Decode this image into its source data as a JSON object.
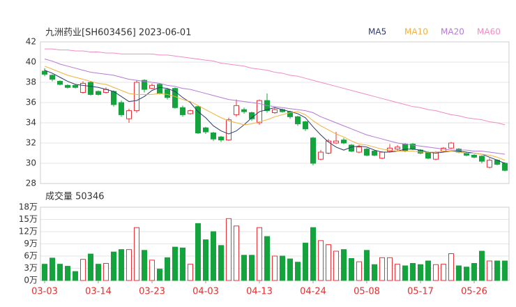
{
  "chart_data": [
    {
      "type": "candlestick",
      "title": "九洲药业[SH603456] 2023-06-01",
      "up_color": "#e8333a",
      "down_color": "#15a33d",
      "open": [
        39.1,
        38.7,
        38.1,
        37.7,
        37.7,
        37.0,
        38.0,
        37.1,
        37.0,
        37.1,
        36.0,
        34.4,
        35.2,
        38.2,
        37.4,
        37.8,
        37.3,
        37.4,
        35.5,
        34.9,
        35.6,
        33.5,
        33.0,
        32.6,
        32.3,
        34.8,
        35.3,
        35.0,
        34.0,
        36.2,
        35.0,
        35.3,
        35.1,
        34.6,
        34.1,
        32.5,
        30.4,
        31.0,
        32.0,
        32.3,
        31.8,
        31.1,
        31.4,
        31.2,
        30.5,
        31.2,
        31.4,
        31.9,
        31.9,
        31.3,
        31.1,
        30.4,
        31.2,
        31.5,
        31.4,
        31.0,
        30.8,
        30.7,
        29.6,
        30.3,
        30.0
      ],
      "high": [
        39.4,
        38.8,
        38.2,
        37.8,
        37.8,
        38.1,
        38.1,
        37.2,
        37.5,
        37.2,
        36.2,
        35.4,
        38.2,
        38.3,
        37.9,
        37.9,
        37.4,
        37.5,
        35.7,
        35.3,
        35.7,
        33.6,
        33.1,
        32.7,
        34.5,
        36.3,
        35.5,
        35.1,
        36.3,
        36.9,
        35.5,
        35.4,
        35.2,
        34.7,
        34.2,
        32.6,
        31.3,
        32.4,
        33.1,
        32.5,
        31.9,
        31.8,
        31.5,
        31.3,
        31.2,
        31.9,
        31.8,
        32.0,
        32.0,
        31.4,
        31.2,
        31.2,
        31.6,
        32.1,
        31.5,
        31.1,
        30.9,
        30.8,
        30.5,
        30.4,
        30.1
      ],
      "low": [
        38.6,
        38.1,
        37.7,
        37.4,
        37.4,
        36.9,
        36.7,
        36.7,
        36.9,
        35.6,
        34.6,
        34.0,
        35.0,
        37.0,
        37.3,
        36.8,
        36.3,
        35.4,
        34.6,
        34.8,
        32.9,
        32.9,
        32.2,
        32.1,
        32.2,
        34.6,
        34.9,
        34.2,
        33.8,
        35.0,
        34.9,
        35.0,
        34.4,
        33.7,
        33.2,
        29.8,
        30.3,
        30.9,
        31.9,
        31.9,
        31.1,
        31.0,
        30.7,
        30.7,
        30.4,
        31.1,
        31.2,
        31.1,
        31.3,
        30.9,
        30.4,
        30.3,
        31.1,
        31.4,
        31.0,
        30.7,
        30.5,
        30.0,
        29.5,
        29.8,
        29.2
      ],
      "close": [
        38.8,
        38.3,
        37.8,
        37.5,
        37.5,
        37.9,
        36.8,
        36.8,
        37.3,
        35.8,
        34.8,
        35.2,
        38.0,
        37.3,
        37.7,
        36.9,
        36.5,
        35.5,
        34.8,
        35.2,
        33.0,
        33.1,
        32.4,
        32.3,
        34.3,
        35.7,
        35.1,
        34.4,
        36.2,
        35.2,
        35.3,
        35.1,
        34.6,
        33.9,
        33.4,
        30.0,
        31.1,
        32.2,
        32.2,
        32.0,
        31.2,
        31.6,
        30.8,
        30.8,
        31.1,
        31.5,
        31.6,
        31.2,
        31.4,
        31.0,
        30.5,
        31.1,
        31.5,
        32.0,
        31.1,
        30.8,
        30.6,
        30.2,
        30.3,
        29.9,
        29.3
      ],
      "series": [
        {
          "name": "MA5",
          "color": "#2e3a6e",
          "values": [
            39.2,
            38.9,
            38.5,
            38.1,
            37.8,
            37.7,
            37.6,
            37.5,
            37.3,
            37.1,
            36.6,
            36.1,
            36.2,
            36.6,
            37.2,
            37.5,
            37.4,
            37.1,
            36.5,
            36.0,
            35.1,
            34.5,
            33.7,
            33.2,
            32.9,
            33.2,
            33.8,
            34.5,
            35.1,
            35.3,
            35.5,
            35.3,
            35.1,
            34.9,
            34.5,
            33.6,
            32.8,
            32.1,
            31.6,
            31.3,
            31.6,
            31.7,
            31.6,
            31.3,
            31.1,
            31.1,
            31.2,
            31.4,
            31.4,
            31.3,
            31.1,
            31.0,
            31.1,
            31.2,
            31.2,
            31.1,
            31.0,
            30.9,
            30.6,
            30.3,
            30.0
          ]
        },
        {
          "name": "MA10",
          "color": "#f2b13e",
          "values": [
            39.6,
            39.3,
            39.0,
            38.7,
            38.5,
            38.3,
            38.1,
            37.9,
            37.8,
            37.5,
            37.2,
            36.9,
            36.8,
            36.8,
            36.8,
            36.9,
            36.8,
            36.6,
            36.3,
            36.1,
            35.7,
            35.3,
            34.9,
            34.5,
            34.2,
            34.0,
            33.8,
            33.9,
            34.1,
            34.3,
            34.6,
            34.8,
            35.0,
            35.1,
            34.8,
            34.2,
            33.7,
            33.3,
            32.9,
            32.6,
            32.2,
            31.9,
            31.8,
            31.6,
            31.4,
            31.3,
            31.2,
            31.2,
            31.2,
            31.1,
            31.1,
            31.1,
            31.2,
            31.2,
            31.1,
            31.0,
            31.0,
            30.9,
            30.8,
            30.6,
            30.3
          ]
        },
        {
          "name": "MA20",
          "color": "#b478d8",
          "values": [
            40.3,
            40.1,
            39.8,
            39.6,
            39.4,
            39.2,
            39.0,
            38.9,
            38.8,
            38.7,
            38.5,
            38.3,
            38.2,
            38.1,
            38.0,
            37.9,
            37.7,
            37.6,
            37.4,
            37.3,
            37.1,
            36.9,
            36.7,
            36.5,
            36.3,
            36.2,
            36.1,
            36.0,
            35.9,
            35.7,
            35.6,
            35.5,
            35.4,
            35.3,
            35.2,
            35.0,
            34.6,
            34.3,
            34.0,
            33.7,
            33.4,
            33.1,
            32.8,
            32.6,
            32.4,
            32.2,
            32.0,
            31.9,
            31.8,
            31.7,
            31.6,
            31.5,
            31.4,
            31.3,
            31.3,
            31.3,
            31.2,
            31.2,
            31.1,
            31.0,
            30.9
          ]
        },
        {
          "name": "MA60",
          "color": "#f08cc4",
          "values": [
            41.3,
            41.3,
            41.2,
            41.2,
            41.1,
            41.1,
            41.0,
            41.0,
            40.9,
            40.9,
            40.8,
            40.8,
            40.8,
            40.8,
            40.8,
            40.7,
            40.7,
            40.6,
            40.5,
            40.4,
            40.3,
            40.2,
            40.1,
            39.9,
            39.8,
            39.7,
            39.6,
            39.4,
            39.3,
            39.2,
            39.0,
            38.9,
            38.7,
            38.6,
            38.4,
            38.2,
            38.0,
            37.8,
            37.6,
            37.4,
            37.2,
            37.0,
            36.8,
            36.6,
            36.4,
            36.2,
            36.0,
            35.8,
            35.6,
            35.5,
            35.3,
            35.2,
            35.0,
            34.8,
            34.7,
            34.5,
            34.4,
            34.3,
            34.1,
            34.0,
            33.8
          ]
        }
      ],
      "ylim": [
        28,
        42
      ],
      "yticks": [
        28,
        30,
        32,
        34,
        36,
        38,
        40,
        42
      ],
      "grid": true
    },
    {
      "type": "bar",
      "title": "成交量 50346",
      "categories": [
        "03-03",
        null,
        null,
        null,
        null,
        null,
        null,
        "03-14",
        null,
        null,
        null,
        null,
        null,
        null,
        "03-23",
        null,
        null,
        null,
        null,
        null,
        null,
        "04-03",
        null,
        null,
        null,
        null,
        null,
        null,
        "04-13",
        null,
        null,
        null,
        null,
        null,
        null,
        "04-24",
        null,
        null,
        null,
        null,
        null,
        null,
        "05-08",
        null,
        null,
        null,
        null,
        null,
        null,
        "05-17",
        null,
        null,
        null,
        null,
        null,
        null,
        "05-26",
        null,
        null,
        null,
        null
      ],
      "values": [
        4.0,
        5.5,
        4.0,
        3.5,
        2.2,
        5.2,
        6.5,
        4.0,
        4.2,
        7.0,
        7.6,
        7.6,
        13.0,
        7.4,
        5.0,
        2.8,
        5.6,
        8.2,
        8.0,
        4.0,
        14.0,
        10.0,
        12.0,
        8.6,
        15.2,
        13.4,
        6.2,
        6.2,
        13.0,
        10.8,
        6.0,
        6.0,
        5.3,
        4.5,
        9.2,
        13.0,
        9.8,
        8.8,
        7.2,
        7.6,
        5.4,
        4.6,
        7.4,
        3.9,
        5.6,
        5.6,
        4.0,
        3.6,
        4.2,
        3.9,
        4.8,
        3.9,
        4.0,
        6.6,
        3.6,
        3.3,
        4.2,
        7.2,
        4.8,
        4.8,
        4.8
      ],
      "ylim": [
        0,
        18
      ],
      "yticks": [
        {
          "value": 0,
          "label": "0万"
        },
        {
          "value": 3,
          "label": "3万"
        },
        {
          "value": 6,
          "label": "6万"
        },
        {
          "value": 9,
          "label": "9万"
        },
        {
          "value": 12,
          "label": "12万"
        },
        {
          "value": 15,
          "label": "15万"
        },
        {
          "value": 18,
          "label": "18万"
        }
      ],
      "grid": true,
      "xlabel_color": "#e03030"
    }
  ]
}
